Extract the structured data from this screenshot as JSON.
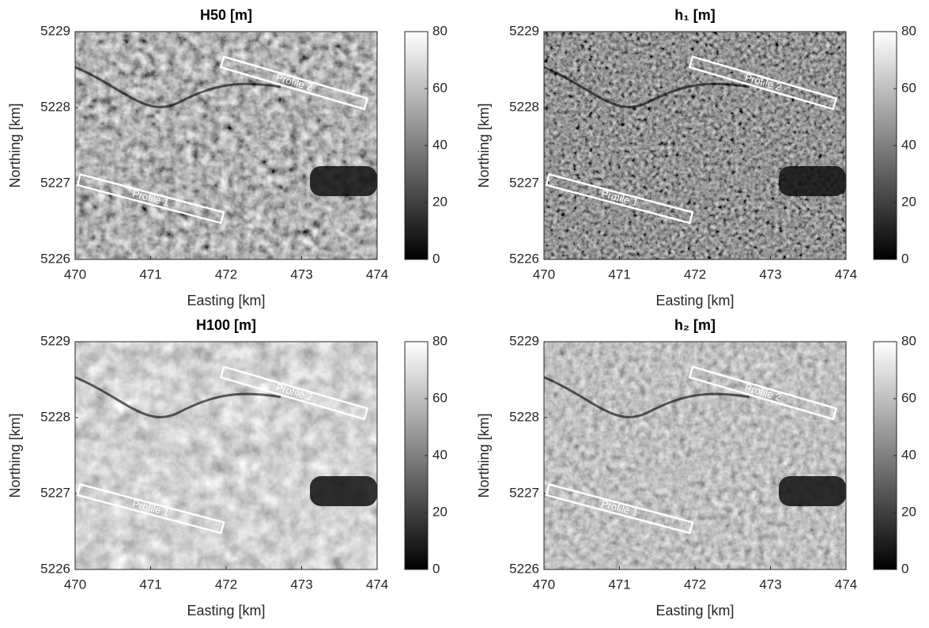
{
  "chart_data": [
    {
      "type": "image",
      "title": "H50 [m]",
      "xlabel": "Easting [km]",
      "ylabel": "Northing [km]",
      "xlim": [
        470,
        474
      ],
      "xticks": [
        470,
        471,
        472,
        473,
        474
      ],
      "ylim": [
        5226,
        5229
      ],
      "yticks": [
        5226,
        5227,
        5228,
        5229
      ],
      "colormap": "gray",
      "clim": [
        0,
        80
      ],
      "cticks": [
        0,
        20,
        40,
        60,
        80
      ],
      "annotations": [
        {
          "text": "Profile 1",
          "start": [
            470.05,
            5227.05
          ],
          "end": [
            471.95,
            5226.55
          ]
        },
        {
          "text": "Profile 2",
          "start": [
            471.95,
            5228.6
          ],
          "end": [
            473.85,
            5228.05
          ]
        }
      ]
    },
    {
      "type": "image",
      "title": "h₁ [m]",
      "xlabel": "Easting [km]",
      "ylabel": "Northing [km]",
      "xlim": [
        470,
        474
      ],
      "xticks": [
        470,
        471,
        472,
        473,
        474
      ],
      "ylim": [
        5226,
        5229
      ],
      "yticks": [
        5226,
        5227,
        5228,
        5229
      ],
      "colormap": "gray",
      "clim": [
        0,
        80
      ],
      "cticks": [
        0,
        20,
        40,
        60,
        80
      ],
      "annotations": [
        {
          "text": "Profile 1",
          "start": [
            470.05,
            5227.05
          ],
          "end": [
            471.95,
            5226.55
          ]
        },
        {
          "text": "Profile 2",
          "start": [
            471.95,
            5228.6
          ],
          "end": [
            473.85,
            5228.05
          ]
        }
      ]
    },
    {
      "type": "image",
      "title": "H100 [m]",
      "xlabel": "Easting [km]",
      "ylabel": "Northing [km]",
      "xlim": [
        470,
        474
      ],
      "xticks": [
        470,
        471,
        472,
        473,
        474
      ],
      "ylim": [
        5226,
        5229
      ],
      "yticks": [
        5226,
        5227,
        5228,
        5229
      ],
      "colormap": "gray",
      "clim": [
        0,
        80
      ],
      "cticks": [
        0,
        20,
        40,
        60,
        80
      ],
      "annotations": [
        {
          "text": "Profile 1",
          "start": [
            470.05,
            5227.05
          ],
          "end": [
            471.95,
            5226.55
          ]
        },
        {
          "text": "Profile 2",
          "start": [
            471.95,
            5228.6
          ],
          "end": [
            473.85,
            5228.05
          ]
        }
      ]
    },
    {
      "type": "image",
      "title": "h₂ [m]",
      "xlabel": "Easting [km]",
      "ylabel": "Northing [km]",
      "xlim": [
        470,
        474
      ],
      "xticks": [
        470,
        471,
        472,
        473,
        474
      ],
      "ylim": [
        5226,
        5229
      ],
      "yticks": [
        5226,
        5227,
        5228,
        5229
      ],
      "colormap": "gray",
      "clim": [
        0,
        80
      ],
      "cticks": [
        0,
        20,
        40,
        60,
        80
      ],
      "annotations": [
        {
          "text": "Profile 1",
          "start": [
            470.05,
            5227.05
          ],
          "end": [
            471.95,
            5226.55
          ]
        },
        {
          "text": "Profile 2",
          "start": [
            471.95,
            5228.6
          ],
          "end": [
            473.85,
            5228.05
          ]
        }
      ]
    }
  ]
}
